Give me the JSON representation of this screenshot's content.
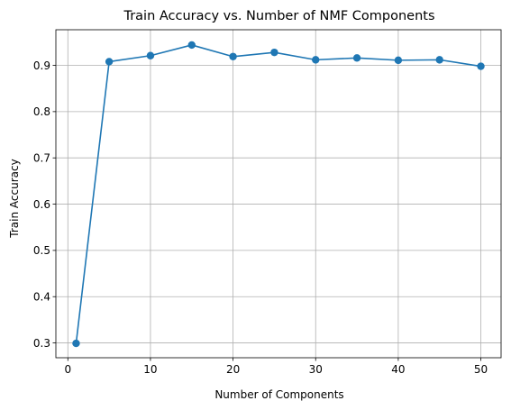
{
  "chart_data": {
    "type": "line",
    "title": "Train Accuracy vs. Number of NMF Components",
    "xlabel": "Number of Components",
    "ylabel": "Train Accuracy",
    "xlim": [
      -1.45,
      52.45
    ],
    "ylim": [
      0.268,
      0.977
    ],
    "xticks": [
      0,
      10,
      20,
      30,
      40,
      50
    ],
    "yticks": [
      0.3,
      0.4,
      0.5,
      0.6,
      0.7,
      0.8,
      0.9
    ],
    "grid": true,
    "line_color": "#1f77b4",
    "marker": "circle",
    "series": [
      {
        "x": [
          1,
          5,
          10,
          15,
          20,
          25,
          30,
          35,
          40,
          45,
          50
        ],
        "y": [
          0.299,
          0.908,
          0.921,
          0.944,
          0.919,
          0.928,
          0.912,
          0.916,
          0.911,
          0.912,
          0.898
        ]
      }
    ]
  }
}
